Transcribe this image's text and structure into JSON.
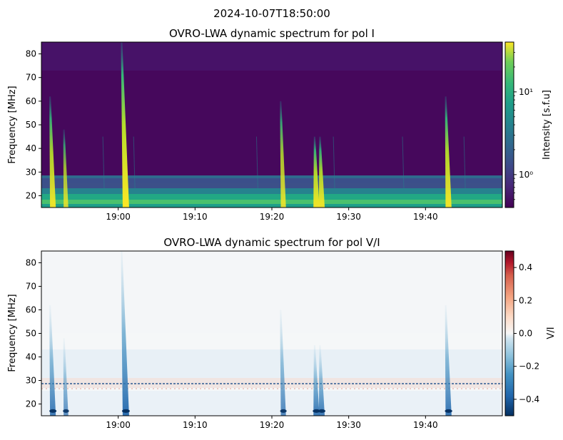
{
  "figure": {
    "suptitle": "2024-10-07T18:50:00"
  },
  "chart_data": [
    {
      "type": "heatmap",
      "title": "OVRO-LWA dynamic spectrum for pol I",
      "xlabel": "",
      "ylabel": "Frequency [MHz]",
      "x_ticks": [
        "19:00",
        "19:10",
        "19:20",
        "19:30",
        "19:40"
      ],
      "x_tick_minutes": [
        10,
        20,
        30,
        40,
        50
      ],
      "x_range_minutes_after_1850": [
        0,
        60
      ],
      "y_ticks": [
        20,
        30,
        40,
        50,
        60,
        70,
        80
      ],
      "ylim": [
        15,
        85
      ],
      "colormap": "viridis",
      "colorbar": {
        "label": "Intensity [s.f.u]",
        "scale": "log",
        "ticks": [
          {
            "value": 1,
            "label": "10⁰"
          },
          {
            "value": 10,
            "label": "10¹"
          }
        ],
        "range": [
          0.4,
          40
        ]
      },
      "bursts": [
        {
          "time": "18:51.5",
          "fmax": 62,
          "strength": 0.85
        },
        {
          "time": "18:53.2",
          "fmax": 48,
          "strength": 0.6
        },
        {
          "time": "19:01.0",
          "fmax": 85,
          "strength": 1.0
        },
        {
          "time": "19:21.5",
          "fmax": 60,
          "strength": 0.7
        },
        {
          "time": "19:25.8",
          "fmax": 45,
          "strength": 0.9
        },
        {
          "time": "19:26.5",
          "fmax": 45,
          "strength": 0.85
        },
        {
          "time": "19:43.0",
          "fmax": 62,
          "strength": 0.9
        }
      ]
    },
    {
      "type": "heatmap",
      "title": "OVRO-LWA dynamic spectrum for pol V/I",
      "xlabel": "",
      "ylabel": "Frequency [MHz]",
      "x_ticks": [
        "19:00",
        "19:10",
        "19:20",
        "19:30",
        "19:40"
      ],
      "x_tick_minutes": [
        10,
        20,
        30,
        40,
        50
      ],
      "x_range_minutes_after_1850": [
        0,
        60
      ],
      "y_ticks": [
        20,
        30,
        40,
        50,
        60,
        70,
        80
      ],
      "ylim": [
        15,
        85
      ],
      "colormap": "RdBu_r",
      "colorbar": {
        "label": "V/I",
        "scale": "linear",
        "ticks": [
          {
            "value": 0.4,
            "label": "0.4"
          },
          {
            "value": 0.2,
            "label": "0.2"
          },
          {
            "value": 0.0,
            "label": "0.0"
          },
          {
            "value": -0.2,
            "label": "−0.2"
          },
          {
            "value": -0.4,
            "label": "−0.4"
          }
        ],
        "range": [
          -0.5,
          0.5
        ]
      }
    }
  ]
}
